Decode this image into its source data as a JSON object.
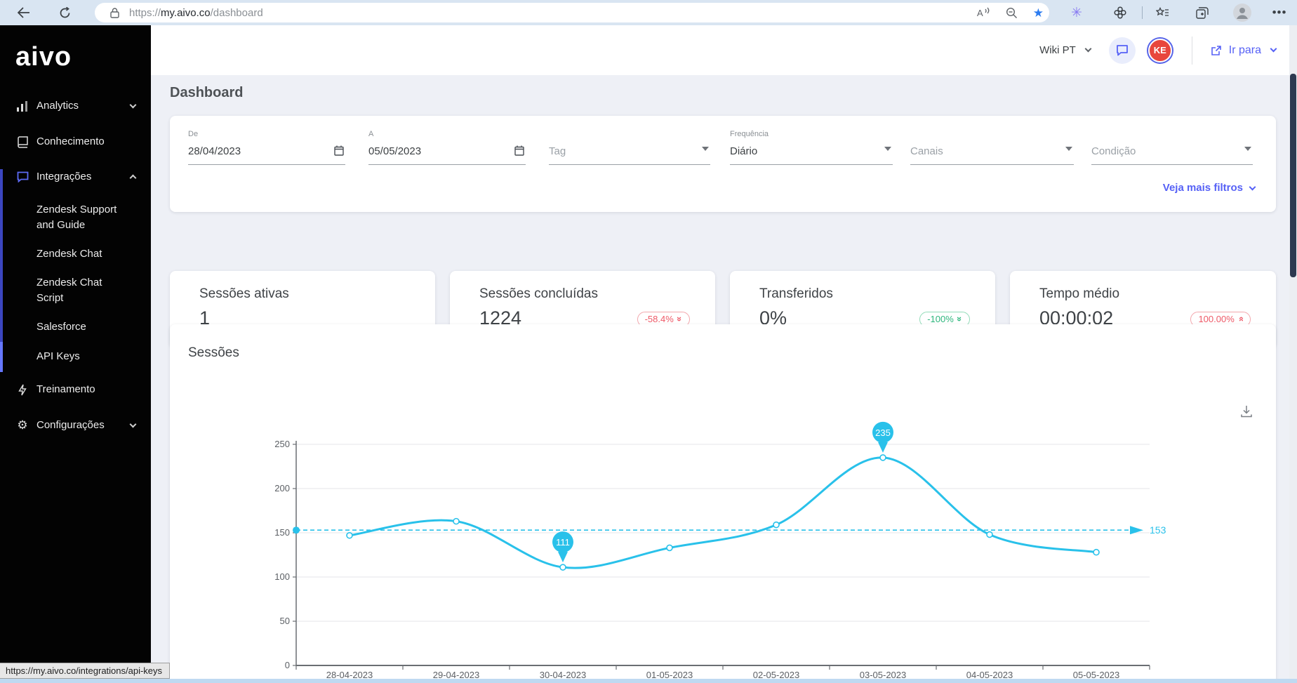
{
  "browser": {
    "url_scheme": "https://",
    "url_domain": "my.aivo.co",
    "url_path": "/dashboard",
    "status_tooltip": "https://my.aivo.co/integrations/api-keys"
  },
  "sidebar": {
    "logo": "aivo",
    "analytics": "Analytics",
    "knowledge": "Conhecimento",
    "integrations": "Integrações",
    "integration_children": [
      "Zendesk Support and Guide",
      "Zendesk Chat",
      "Zendesk Chat Script",
      "Salesforce",
      "API Keys"
    ],
    "training": "Treinamento",
    "settings": "Configurações"
  },
  "header": {
    "language": "Wiki PT",
    "avatar_initials": "KE",
    "go_to_label": "Ir para"
  },
  "page": {
    "title": "Dashboard"
  },
  "filters": {
    "from": {
      "label": "De",
      "value": "28/04/2023"
    },
    "to": {
      "label": "A",
      "value": "05/05/2023"
    },
    "tag": {
      "placeholder": "Tag"
    },
    "frequency": {
      "label": "Frequência",
      "value": "Diário"
    },
    "channels": {
      "placeholder": "Canais"
    },
    "condition": {
      "placeholder": "Condição"
    },
    "more_filters": "Veja mais filtros"
  },
  "kpis": [
    {
      "title": "Sessões ativas",
      "value": "1",
      "badge": ""
    },
    {
      "title": "Sessões concluídas",
      "value": "1224",
      "badge": "-58.4%",
      "badge_dir": "down",
      "badge_color": "#ee5a68",
      "badge_border": "#f3a7ad"
    },
    {
      "title": "Transferidos",
      "value": "0%",
      "badge": "-100%",
      "badge_dir": "down",
      "badge_color": "#2eb67d",
      "badge_border": "#93dcb9"
    },
    {
      "title": "Tempo médio",
      "value": "00:00:02",
      "badge": "100.00%",
      "badge_dir": "up",
      "badge_color": "#ee5a68",
      "badge_border": "#f3a7ad"
    }
  ],
  "chart_data": {
    "type": "line",
    "title": "Sessões",
    "x": [
      "28-04-2023",
      "29-04-2023",
      "30-04-2023",
      "01-05-2023",
      "02-05-2023",
      "03-05-2023",
      "04-05-2023",
      "05-05-2023"
    ],
    "series": [
      {
        "name": "Sessões",
        "values": [
          147,
          163,
          111,
          133,
          159,
          235,
          148,
          128
        ]
      }
    ],
    "labeled_points": [
      {
        "x": "30-04-2023",
        "value": 111
      },
      {
        "x": "03-05-2023",
        "value": 235
      }
    ],
    "average_line": 153,
    "ylim": [
      0,
      250
    ],
    "yticks": [
      0,
      50,
      100,
      150,
      200,
      250
    ],
    "grid": true,
    "legend": "none",
    "line_color": "#29c1ea",
    "axis_text_color": "#5b5f64"
  }
}
